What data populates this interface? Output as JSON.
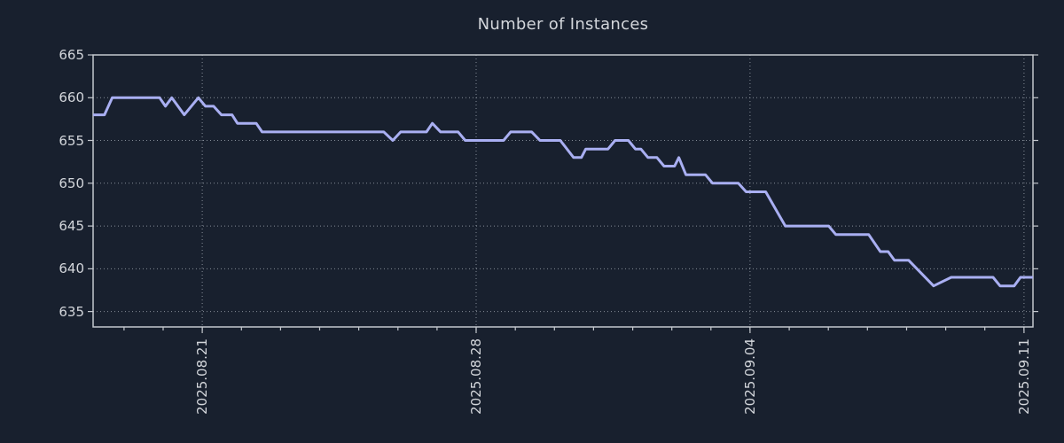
{
  "figure": {
    "background_color": "#18202e",
    "text_color": "#d3d6db",
    "spine_color": "#c3c7cd"
  },
  "chart_data": {
    "type": "line",
    "title": "Number of Instances",
    "series_name": "instances",
    "series_color": "#a9aff2",
    "grid": {
      "color": "#99a0ab",
      "style": "dotted",
      "on": true
    },
    "legend_position": "none",
    "x_unit": "days since 2025-08-18 00:00",
    "xlim": [
      0.21,
      24.23
    ],
    "ylim": [
      633.2,
      665
    ],
    "y_ticks": [
      665,
      660,
      655,
      650,
      645,
      640,
      635
    ],
    "x_major_ticks": [
      {
        "label": "2025.08.21",
        "day": 3
      },
      {
        "label": "2025.08.28",
        "day": 10
      },
      {
        "label": "2025.09.04",
        "day": 17
      },
      {
        "label": "2025.09.11",
        "day": 24
      }
    ],
    "x_minor_tick_days": [
      1,
      2,
      3,
      4,
      5,
      6,
      7,
      8,
      9,
      10,
      11,
      12,
      13,
      14,
      15,
      16,
      17,
      18,
      19,
      20,
      21,
      22,
      23,
      24
    ],
    "points": [
      [
        0.21,
        658
      ],
      [
        0.5,
        658
      ],
      [
        0.7,
        660
      ],
      [
        1.91,
        660
      ],
      [
        2.06,
        659
      ],
      [
        2.22,
        660
      ],
      [
        2.54,
        658
      ],
      [
        2.9,
        660
      ],
      [
        3.08,
        659
      ],
      [
        3.29,
        659
      ],
      [
        3.49,
        658
      ],
      [
        3.76,
        658
      ],
      [
        3.9,
        657
      ],
      [
        4.38,
        657
      ],
      [
        4.53,
        656
      ],
      [
        7.64,
        656
      ],
      [
        7.87,
        655
      ],
      [
        8.07,
        656
      ],
      [
        8.73,
        656
      ],
      [
        8.88,
        657
      ],
      [
        9.09,
        656
      ],
      [
        9.54,
        656
      ],
      [
        9.72,
        655
      ],
      [
        10.7,
        655
      ],
      [
        10.88,
        656
      ],
      [
        11.42,
        656
      ],
      [
        11.63,
        655
      ],
      [
        12.15,
        655
      ],
      [
        12.49,
        653
      ],
      [
        12.69,
        653
      ],
      [
        12.8,
        654
      ],
      [
        13.37,
        654
      ],
      [
        13.55,
        655
      ],
      [
        13.89,
        655
      ],
      [
        14.07,
        654
      ],
      [
        14.21,
        654
      ],
      [
        14.39,
        653
      ],
      [
        14.62,
        653
      ],
      [
        14.8,
        652
      ],
      [
        15.07,
        652
      ],
      [
        15.18,
        653
      ],
      [
        15.36,
        651
      ],
      [
        15.86,
        651
      ],
      [
        16.04,
        650
      ],
      [
        16.7,
        650
      ],
      [
        16.9,
        649
      ],
      [
        17.4,
        649
      ],
      [
        17.65,
        647
      ],
      [
        17.9,
        645
      ],
      [
        19.01,
        645
      ],
      [
        19.19,
        644
      ],
      [
        20.03,
        644
      ],
      [
        20.33,
        642
      ],
      [
        20.53,
        642
      ],
      [
        20.69,
        641
      ],
      [
        21.05,
        641
      ],
      [
        21.69,
        638
      ],
      [
        22.14,
        639
      ],
      [
        23.21,
        639
      ],
      [
        23.39,
        638
      ],
      [
        23.75,
        638
      ],
      [
        23.91,
        639
      ],
      [
        24.23,
        639
      ]
    ]
  }
}
